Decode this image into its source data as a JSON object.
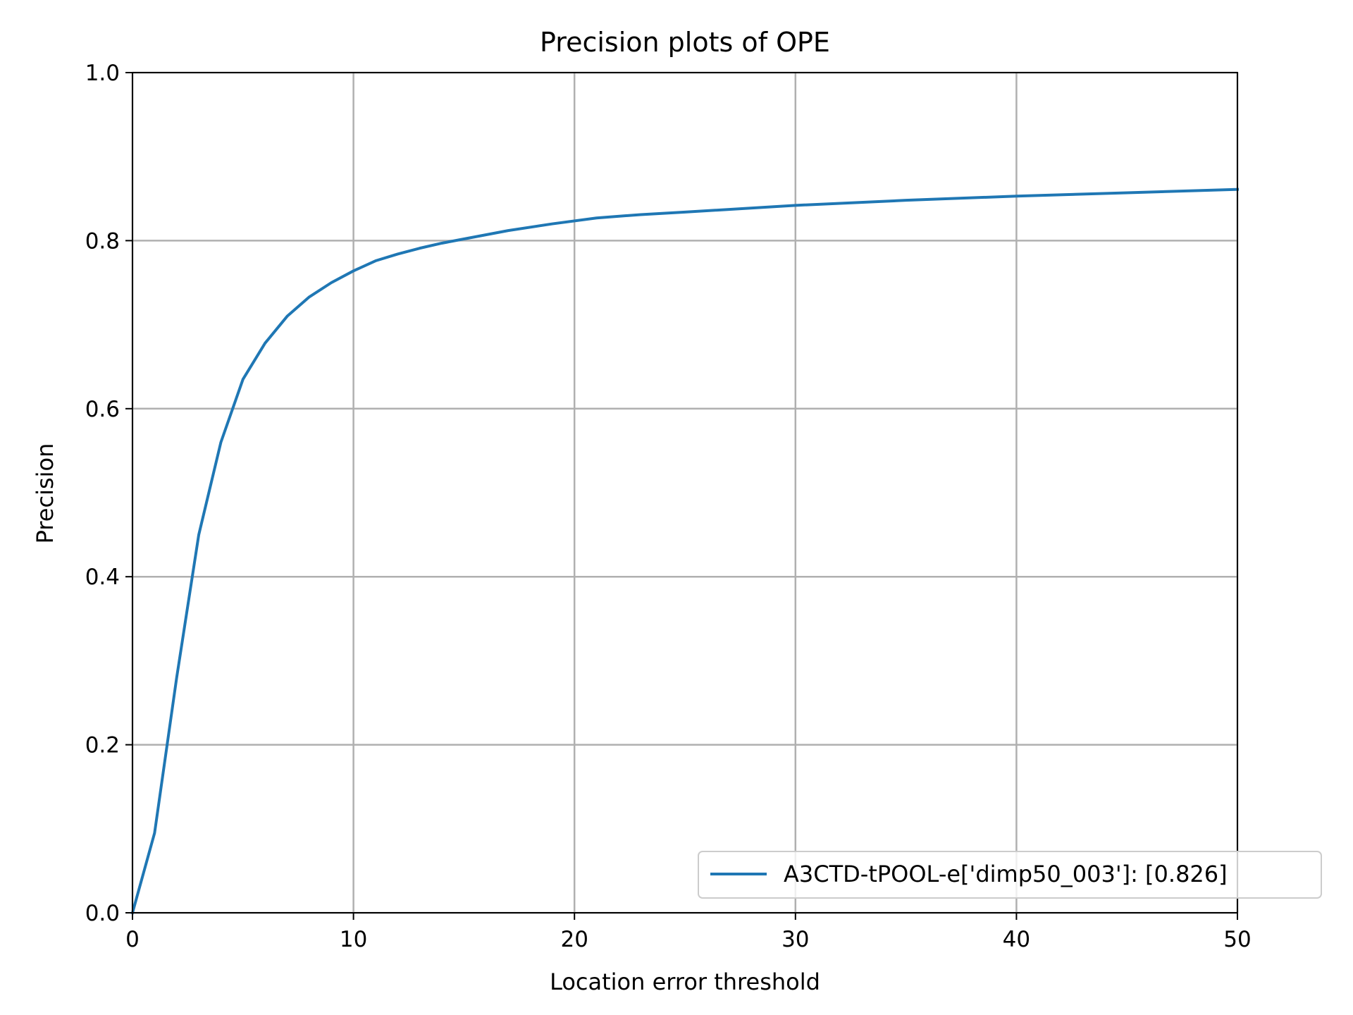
{
  "chart_data": {
    "type": "line",
    "title": "Precision plots of OPE",
    "xlabel": "Location error threshold",
    "ylabel": "Precision",
    "xlim": [
      0,
      50
    ],
    "ylim": [
      0.0,
      1.0
    ],
    "xticks": [
      "0",
      "10",
      "20",
      "30",
      "40",
      "50"
    ],
    "yticks": [
      "0.0",
      "0.2",
      "0.4",
      "0.6",
      "0.8",
      "1.0"
    ],
    "grid": true,
    "legend_position": "lower-right",
    "series": [
      {
        "name": "A3CTD-tPOOL-e['dimp50_003']: [0.826]",
        "color": "#1f77b4",
        "x": [
          0,
          1,
          2,
          3,
          4,
          5,
          6,
          7,
          8,
          9,
          10,
          11,
          12,
          13,
          14,
          15,
          17,
          19,
          21,
          23,
          25,
          30,
          35,
          40,
          45,
          50
        ],
        "y": [
          0.0,
          0.095,
          0.28,
          0.45,
          0.56,
          0.635,
          0.678,
          0.71,
          0.733,
          0.75,
          0.764,
          0.776,
          0.784,
          0.791,
          0.797,
          0.802,
          0.812,
          0.82,
          0.827,
          0.831,
          0.834,
          0.842,
          0.848,
          0.853,
          0.857,
          0.861
        ]
      }
    ]
  }
}
